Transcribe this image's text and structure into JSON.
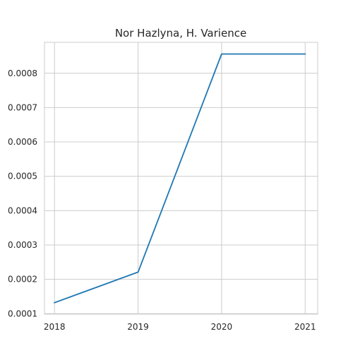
{
  "chart_data": {
    "type": "line",
    "title": "Nor Hazlyna, H. Varience",
    "xlabel": "",
    "ylabel": "",
    "x": [
      2018,
      2019,
      2020,
      2021
    ],
    "x_tick_labels": [
      "2018",
      "2019",
      "2020",
      "2021"
    ],
    "y_tick_values": [
      0.0001,
      0.0002,
      0.0003,
      0.0004,
      0.0005,
      0.0006,
      0.0007,
      0.0008
    ],
    "y_tick_labels": [
      "0.0001",
      "0.0002",
      "0.0003",
      "0.0004",
      "0.0005",
      "0.0006",
      "0.0007",
      "0.0008"
    ],
    "xlim": [
      2017.88,
      2021.15
    ],
    "ylim": [
      9.85e-05,
      0.00089
    ],
    "grid": true,
    "series": [
      {
        "values": [
          0.000132,
          0.000221,
          0.000856,
          0.000856
        ],
        "color": "#1f77b4"
      }
    ]
  }
}
